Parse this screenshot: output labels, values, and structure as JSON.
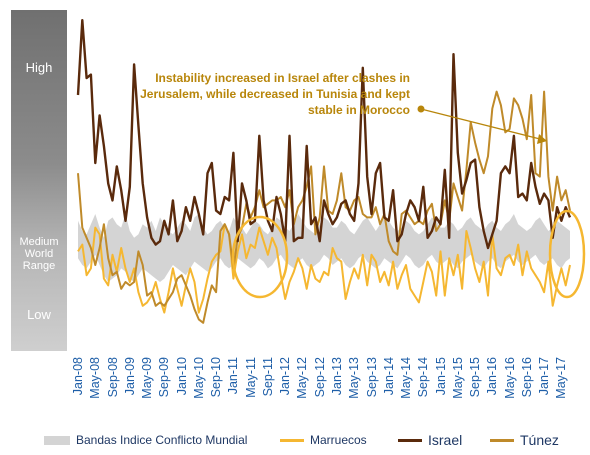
{
  "levels": {
    "high": "High",
    "medium_line1": "Medium",
    "medium_line2": "World",
    "medium_line3": "Range",
    "low": "Low"
  },
  "annotation": {
    "line1": "Instability increased in Israel after clashes in",
    "line2": "Jerusalem, while decreased in Tunisia and kept",
    "line3": "stable in Morocco"
  },
  "colors": {
    "band": "#d4d4d4",
    "morocco": "#f5b731",
    "israel": "#5a2a0c",
    "tunisia": "#bf8a2a",
    "annotation": "#b8860b",
    "tick_text": "#1f5fa8",
    "circle": "#f5b731"
  },
  "chart_data": {
    "type": "line",
    "title": "",
    "xlabel": "",
    "ylabel": "",
    "ylim": [
      0,
      100
    ],
    "x_tick_labels": [
      "Jan-08",
      "May-08",
      "Sep-08",
      "Jan-09",
      "May-09",
      "Sep-09",
      "Jan-10",
      "May-10",
      "Sep-10",
      "Jan-11",
      "May-11",
      "Sep-11",
      "Jan-12",
      "May-12",
      "Sep-12",
      "Jan-13",
      "May-13",
      "Sep-13",
      "Jan-14",
      "May-14",
      "Sep-14",
      "Jan-15",
      "May-15",
      "Sep-15",
      "Jan-16",
      "May-16",
      "Sep-16",
      "Jan-17",
      "May-17"
    ],
    "tick_step_months": 4,
    "points_per_series": 115,
    "band": {
      "name": "Bandas Indice Conflicto Mundial",
      "upper": [
        38,
        35,
        34,
        37,
        40,
        36,
        33,
        38,
        39,
        37,
        36,
        40,
        35,
        33,
        34,
        37,
        36,
        38,
        35,
        39,
        37,
        35,
        34,
        36,
        38,
        37,
        35,
        39,
        40,
        36,
        34,
        35,
        37,
        38,
        36,
        35,
        39,
        37,
        36,
        34,
        36,
        38,
        37,
        35,
        34,
        36,
        39,
        38,
        36,
        35,
        37,
        40,
        38,
        36,
        35,
        34,
        37,
        39,
        38,
        36,
        36,
        38,
        37,
        35,
        34,
        36,
        38,
        39,
        37,
        35,
        37,
        40,
        38,
        36,
        35,
        36,
        38,
        37,
        35,
        34,
        35,
        37,
        39,
        38,
        36,
        36,
        38,
        37,
        35,
        36,
        38,
        39,
        37,
        36,
        35,
        37,
        38,
        36,
        35,
        37,
        38,
        40,
        37,
        36,
        35,
        36,
        38,
        39,
        37,
        35,
        36,
        38,
        37,
        36,
        35
      ],
      "lower": [
        27,
        25,
        24,
        26,
        28,
        25,
        22,
        20,
        21,
        22,
        24,
        23,
        21,
        20,
        22,
        24,
        23,
        22,
        21,
        20,
        21,
        23,
        25,
        24,
        23,
        22,
        24,
        26,
        25,
        24,
        23,
        24,
        26,
        27,
        25,
        24,
        25,
        27,
        26,
        25,
        24,
        25,
        27,
        26,
        24,
        25,
        27,
        28,
        26,
        25,
        24,
        26,
        27,
        25,
        24,
        25,
        26,
        28,
        27,
        25,
        26,
        27,
        25,
        24,
        25,
        27,
        28,
        26,
        25,
        24,
        25,
        27,
        26,
        25,
        24,
        26,
        28,
        27,
        25,
        24,
        25,
        27,
        28,
        26,
        25,
        26,
        27,
        25,
        24,
        26,
        27,
        28,
        26,
        25,
        24,
        26,
        27,
        25,
        24,
        26,
        27,
        28,
        26,
        25,
        26,
        27,
        28,
        26,
        25,
        26,
        27,
        25,
        24,
        26,
        27
      ]
    },
    "series": [
      {
        "name": "Marruecos",
        "values": [
          29,
          31,
          22,
          24,
          36,
          34,
          21,
          19,
          28,
          23,
          30,
          24,
          20,
          24,
          17,
          13,
          14,
          16,
          20,
          15,
          11,
          17,
          24,
          18,
          13,
          19,
          24,
          20,
          11,
          15,
          21,
          26,
          28,
          29,
          37,
          34,
          21,
          29,
          34,
          27,
          31,
          30,
          36,
          32,
          28,
          33,
          30,
          22,
          15,
          20,
          23,
          27,
          24,
          18,
          25,
          21,
          20,
          23,
          22,
          30,
          27,
          26,
          15,
          20,
          24,
          21,
          28,
          19,
          28,
          26,
          20,
          23,
          19,
          26,
          18,
          22,
          25,
          18,
          16,
          14,
          20,
          26,
          23,
          16,
          29,
          16,
          27,
          22,
          28,
          18,
          35,
          30,
          24,
          20,
          26,
          16,
          34,
          24,
          22,
          27,
          28,
          25,
          31,
          22,
          29,
          24,
          22,
          20,
          17,
          26,
          13,
          19,
          24,
          19,
          25
        ]
      },
      {
        "name": "Israel",
        "values": [
          75,
          97,
          80,
          81,
          55,
          69,
          60,
          49,
          44,
          54,
          47,
          38,
          48,
          84,
          66,
          49,
          39,
          33,
          31,
          32,
          38,
          34,
          44,
          32,
          35,
          42,
          38,
          45,
          40,
          34,
          52,
          55,
          41,
          40,
          45,
          44,
          58,
          32,
          49,
          44,
          37,
          38,
          63,
          44,
          38,
          35,
          45,
          40,
          32,
          63,
          32,
          33,
          33,
          60,
          37,
          39,
          32,
          44,
          40,
          37,
          39,
          43,
          44,
          40,
          38,
          49,
          83,
          51,
          40,
          52,
          55,
          39,
          38,
          47,
          32,
          34,
          40,
          44,
          42,
          38,
          48,
          33,
          35,
          39,
          37,
          53,
          33,
          87,
          58,
          46,
          50,
          55,
          56,
          42,
          35,
          30,
          34,
          38,
          52,
          54,
          52,
          63,
          45,
          46,
          44,
          55,
          48,
          43,
          46,
          44,
          33,
          42,
          38,
          42,
          39
        ]
      },
      {
        "name": "Túnez",
        "values": [
          52,
          36,
          33,
          30,
          25,
          30,
          37,
          27,
          22,
          23,
          18,
          20,
          19,
          20,
          29,
          25,
          16,
          17,
          13,
          14,
          13,
          15,
          17,
          21,
          22,
          19,
          16,
          12,
          9,
          8,
          14,
          19,
          17,
          35,
          37,
          34,
          24,
          33,
          36,
          43,
          39,
          42,
          47,
          42,
          43,
          44,
          44,
          45,
          42,
          47,
          37,
          42,
          44,
          48,
          54,
          34,
          39,
          54,
          41,
          40,
          44,
          52,
          42,
          41,
          44,
          45,
          40,
          39,
          39,
          42,
          37,
          40,
          32,
          29,
          28,
          40,
          41,
          39,
          37,
          38,
          37,
          41,
          43,
          35,
          37,
          44,
          38,
          49,
          45,
          41,
          53,
          67,
          61,
          56,
          52,
          57,
          71,
          76,
          72,
          64,
          65,
          74,
          72,
          68,
          62,
          75,
          52,
          51,
          76,
          51,
          41,
          51,
          44,
          47,
          41
        ]
      }
    ]
  }
}
